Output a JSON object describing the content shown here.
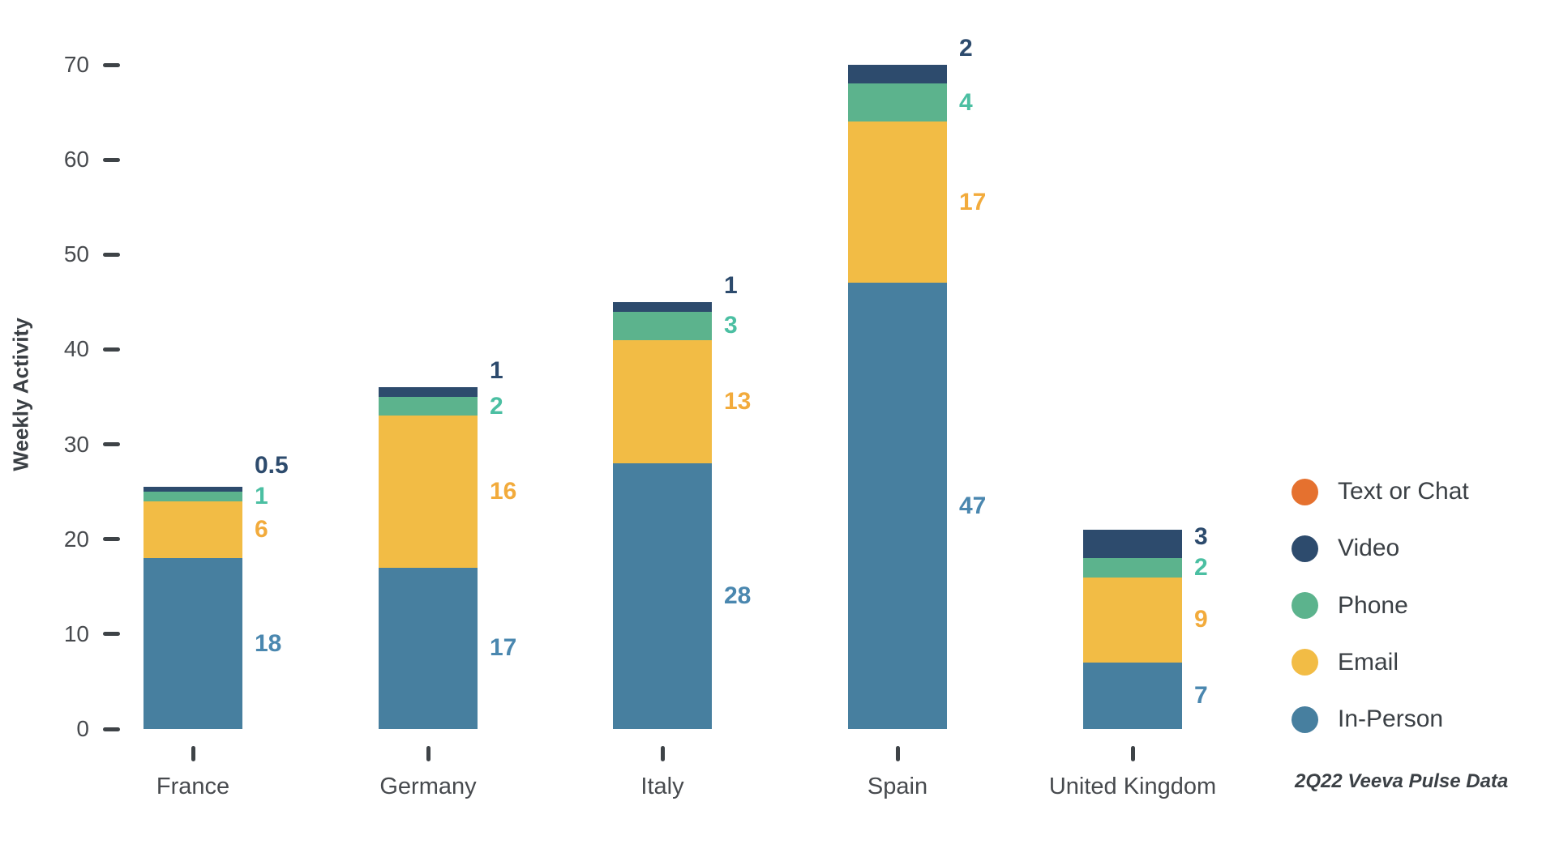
{
  "chart_data": {
    "type": "bar",
    "stacked": true,
    "title": "",
    "xlabel": "",
    "ylabel": "Weekly Activity",
    "ylim": [
      0,
      70
    ],
    "yticks": [
      0,
      10,
      20,
      30,
      40,
      50,
      60,
      70
    ],
    "grid": false,
    "legend_position": "right",
    "categories": [
      "France",
      "Germany",
      "Italy",
      "Spain",
      "United Kingdom"
    ],
    "series": [
      {
        "name": "In-Person",
        "color": "#477f9f",
        "label_color": "#4a87af",
        "values": [
          18,
          17,
          28,
          47,
          7
        ]
      },
      {
        "name": "Email",
        "color": "#f2bc45",
        "label_color": "#f2ab3c",
        "values": [
          6,
          16,
          13,
          17,
          9
        ]
      },
      {
        "name": "Phone",
        "color": "#5cb38d",
        "label_color": "#4bbfa2",
        "values": [
          1,
          2,
          3,
          4,
          2
        ]
      },
      {
        "name": "Video",
        "color": "#2d4b6d",
        "label_color": "#2d4b6d",
        "values": [
          0.5,
          1,
          1,
          2,
          3
        ]
      },
      {
        "name": "Text or Chat",
        "color": "#e5712f",
        "label_color": "#e5712f",
        "values": [
          0,
          0,
          0,
          0,
          0
        ]
      }
    ]
  },
  "legend": {
    "items": [
      {
        "label": "Text or Chat",
        "color": "#e5712f"
      },
      {
        "label": "Video",
        "color": "#2d4b6d"
      },
      {
        "label": "Phone",
        "color": "#5cb38d"
      },
      {
        "label": "Email",
        "color": "#f2bc45"
      },
      {
        "label": "In-Person",
        "color": "#477f9f"
      }
    ]
  },
  "footer": {
    "note": "2Q22 Veeva Pulse Data"
  }
}
